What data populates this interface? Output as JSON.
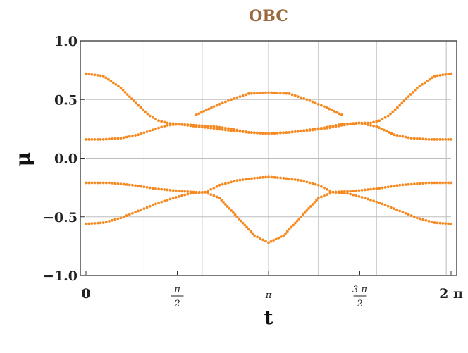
{
  "chart_data": {
    "type": "scatter",
    "title": "OBC",
    "xlabel": "t",
    "ylabel": "μ",
    "xlim": [
      0,
      6.2832
    ],
    "ylim": [
      -1.0,
      1.0
    ],
    "grid": true,
    "x_ticks": [
      {
        "value": 0,
        "label": "0"
      },
      {
        "value": 1.5708,
        "label": "π",
        "label_den": "2",
        "fraction": true
      },
      {
        "value": 3.1416,
        "label": "π"
      },
      {
        "value": 4.7124,
        "label": "3 π",
        "label_den": "2",
        "fraction": true
      },
      {
        "value": 6.2832,
        "label": "2 π"
      }
    ],
    "y_ticks": [
      {
        "value": 1.0,
        "label": "1.0"
      },
      {
        "value": 0.5,
        "label": "0.5"
      },
      {
        "value": 0.0,
        "label": "0.0"
      },
      {
        "value": -0.5,
        "label": "−0.5"
      },
      {
        "value": -1.0,
        "label": "−1.0"
      }
    ],
    "x_gridlines": [
      1.0,
      2.0,
      3.1416,
      4.0,
      5.0,
      6.2
    ],
    "y_gridlines": [
      0.5,
      0.0,
      -0.5
    ],
    "colors": {
      "points": "#f5891f",
      "title": "#9a6a3d",
      "grid": "#bdbdbd",
      "axis": "#333333"
    },
    "series": [
      {
        "x": [
          0,
          0.3,
          0.6,
          0.9,
          1.1,
          1.25,
          1.4,
          1.6
        ],
        "y": [
          0.72,
          0.7,
          0.6,
          0.45,
          0.36,
          0.32,
          0.3,
          0.29
        ]
      },
      {
        "x": [
          1.6,
          1.75,
          1.9,
          2.1,
          2.4,
          2.8,
          3.1416,
          3.5,
          3.9,
          4.2,
          4.4,
          4.55,
          4.7
        ],
        "y": [
          0.29,
          0.28,
          0.27,
          0.26,
          0.24,
          0.22,
          0.21,
          0.22,
          0.24,
          0.26,
          0.28,
          0.29,
          0.3
        ]
      },
      {
        "x": [
          4.7,
          4.9,
          5.05,
          5.2,
          5.4,
          5.7,
          6.0,
          6.2832
        ],
        "y": [
          0.3,
          0.3,
          0.32,
          0.36,
          0.45,
          0.6,
          0.7,
          0.72
        ]
      },
      {
        "x": [
          0,
          0.3,
          0.6,
          0.9,
          1.2,
          1.4,
          1.6,
          1.9,
          2.2
        ],
        "y": [
          0.16,
          0.16,
          0.17,
          0.2,
          0.25,
          0.28,
          0.29,
          0.28,
          0.27
        ]
      },
      {
        "x": [
          2.2,
          2.5,
          2.8,
          3.1416,
          3.5,
          3.8,
          4.1,
          4.4,
          4.7
        ],
        "y": [
          0.27,
          0.25,
          0.22,
          0.21,
          0.22,
          0.24,
          0.26,
          0.29,
          0.3
        ]
      },
      {
        "x": [
          4.7,
          5.0,
          5.3,
          5.6,
          5.9,
          6.2832
        ],
        "y": [
          0.3,
          0.27,
          0.2,
          0.17,
          0.16,
          0.16
        ]
      },
      {
        "x": [
          1.9,
          2.2,
          2.5,
          2.8,
          3.1416,
          3.5,
          3.8,
          4.1,
          4.4
        ],
        "y": [
          0.37,
          0.44,
          0.5,
          0.55,
          0.56,
          0.55,
          0.5,
          0.44,
          0.37
        ]
      },
      {
        "x": [
          0,
          0.4,
          0.8,
          1.2,
          1.6,
          1.9,
          2.05
        ],
        "y": [
          -0.21,
          -0.21,
          -0.23,
          -0.26,
          -0.28,
          -0.29,
          -0.29
        ]
      },
      {
        "x": [
          2.05,
          2.3,
          2.6,
          2.9,
          3.1416,
          3.4,
          3.7,
          4.0,
          4.25
        ],
        "y": [
          -0.29,
          -0.23,
          -0.19,
          -0.17,
          -0.16,
          -0.17,
          -0.19,
          -0.23,
          -0.29
        ]
      },
      {
        "x": [
          4.25,
          4.6,
          5.0,
          5.4,
          5.9,
          6.2832
        ],
        "y": [
          -0.29,
          -0.28,
          -0.26,
          -0.23,
          -0.21,
          -0.21
        ]
      },
      {
        "x": [
          0,
          0.3,
          0.6,
          0.9,
          1.2,
          1.5,
          1.8,
          2.05
        ],
        "y": [
          -0.56,
          -0.55,
          -0.51,
          -0.45,
          -0.39,
          -0.34,
          -0.3,
          -0.29
        ]
      },
      {
        "x": [
          2.05,
          2.3,
          2.6,
          2.9,
          3.1416,
          3.4,
          3.7,
          4.0,
          4.25
        ],
        "y": [
          -0.29,
          -0.34,
          -0.5,
          -0.66,
          -0.72,
          -0.66,
          -0.5,
          -0.34,
          -0.29
        ]
      },
      {
        "x": [
          4.25,
          4.5,
          4.8,
          5.1,
          5.4,
          5.7,
          6.0,
          6.2832
        ],
        "y": [
          -0.29,
          -0.3,
          -0.34,
          -0.39,
          -0.45,
          -0.51,
          -0.55,
          -0.56
        ]
      }
    ]
  }
}
